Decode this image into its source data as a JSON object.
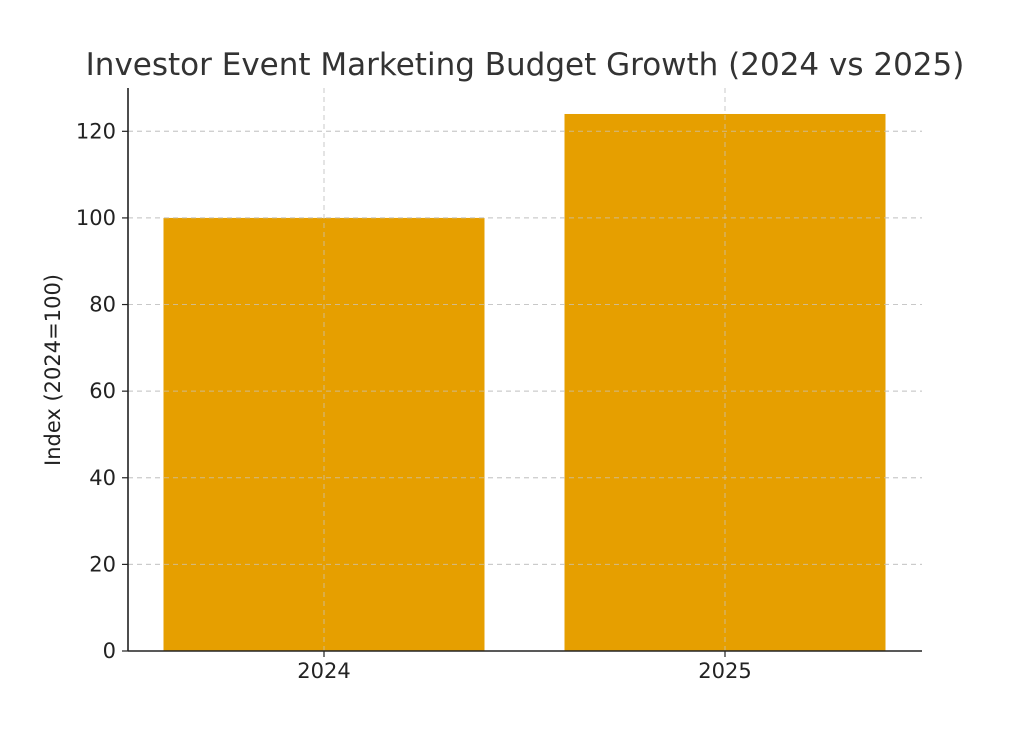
{
  "chart_data": {
    "type": "bar",
    "title": "Investor Event Marketing Budget Growth (2024 vs 2025)",
    "xlabel": "",
    "ylabel": "Index (2024=100)",
    "categories": [
      "2024",
      "2025"
    ],
    "values": [
      100,
      124
    ],
    "ylim": [
      0,
      130
    ],
    "yticks": [
      0,
      20,
      40,
      60,
      80,
      100,
      120
    ],
    "grid": true,
    "bar_color": "#E69F00"
  }
}
